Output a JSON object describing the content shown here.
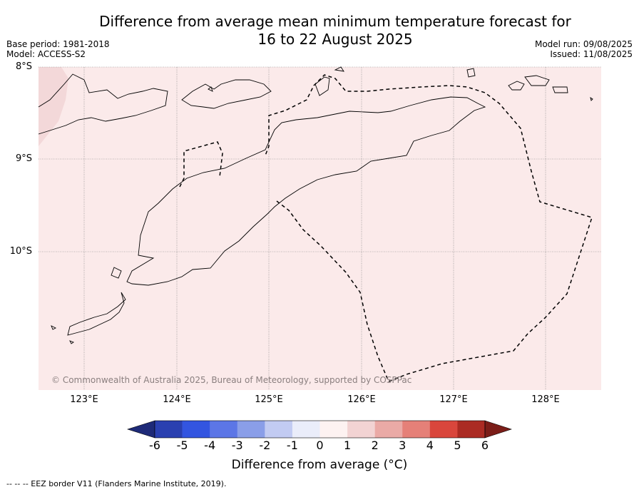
{
  "title_line1": "Difference from average mean minimum temperature forecast for",
  "title_line2": "16 to 22 August 2025",
  "base_period": "Base period: 1981-2018",
  "model": "Model: ACCESS-S2",
  "model_run": "Model run: 09/08/2025",
  "issued": "Issued: 11/08/2025",
  "lat_labels": [
    "8°S",
    "9°S",
    "10°S"
  ],
  "lon_labels": [
    "123°E",
    "124°E",
    "125°E",
    "126°E",
    "127°E",
    "128°E"
  ],
  "copyright": "© Commonwealth of Australia 2025, Bureau of Meteorology, supported by COSPPac",
  "colorbar": {
    "labels": [
      "-6",
      "-5",
      "-4",
      "-3",
      "-2",
      "-1",
      "0",
      "1",
      "2",
      "3",
      "4",
      "5",
      "6"
    ],
    "colors": [
      "#1e2a78",
      "#2a40b0",
      "#3355e0",
      "#5c76e6",
      "#8a9ee8",
      "#c2cbf2",
      "#eaedfa",
      "#fdf2f1",
      "#f2d3d3",
      "#eaaaa6",
      "#e58078",
      "#d9463c",
      "#ab2b23",
      "#7b1d18"
    ],
    "title": "Difference from average (°C)"
  },
  "map_colors": {
    "background": "#fbeaea",
    "shade": "#f3d8d9"
  },
  "footer": "--  --  -- EEZ border V11 (Flanders Marine Institute, 2019)."
}
